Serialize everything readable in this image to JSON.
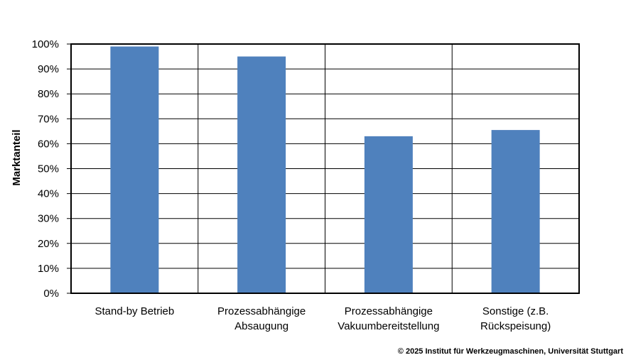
{
  "chart_data": {
    "type": "bar",
    "categories": [
      [
        "Stand-by Betrieb"
      ],
      [
        "Prozessabhängige",
        "Absaugung"
      ],
      [
        "Prozessabhängige",
        "Vakuumbereitstellung"
      ],
      [
        "Sonstige (z.B.",
        "Rückspeisung)"
      ]
    ],
    "values": [
      99,
      95,
      63,
      65.5
    ],
    "ylabel": "Marktanteil",
    "ylim": [
      0,
      100
    ],
    "yticks": [
      "0%",
      "10%",
      "20%",
      "30%",
      "40%",
      "50%",
      "60%",
      "70%",
      "80%",
      "90%",
      "100%"
    ],
    "grid": true,
    "bar_color": "#4f81bd"
  },
  "footer": {
    "copyright": "© 2025 Institut für Werkzeugmaschinen, Universität Stuttgart"
  }
}
